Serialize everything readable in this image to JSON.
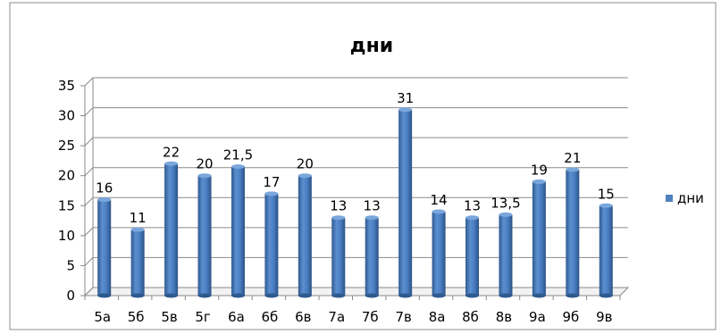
{
  "chart_data": {
    "type": "bar",
    "title": "дни",
    "xlabel": "",
    "ylabel": "",
    "categories": [
      "5а",
      "5б",
      "5в",
      "5г",
      "6а",
      "6б",
      "6в",
      "7а",
      "7б",
      "7в",
      "8а",
      "8б",
      "8в",
      "9а",
      "9б",
      "9в"
    ],
    "series": [
      {
        "name": "дни",
        "values": [
          16,
          11,
          22,
          20,
          21.5,
          17,
          20,
          13,
          13,
          31,
          14,
          13,
          13.5,
          19,
          21,
          15
        ],
        "labels": [
          "16",
          "11",
          "22",
          "20",
          "21,5",
          "17",
          "20",
          "13",
          "13",
          "31",
          "14",
          "13",
          "13,5",
          "19",
          "21",
          "15"
        ],
        "color": "#4f81bd"
      }
    ],
    "ylim": [
      0,
      35
    ],
    "yticks": [
      0,
      5,
      10,
      15,
      20,
      25,
      30,
      35
    ],
    "grid": true,
    "legend": "right"
  }
}
